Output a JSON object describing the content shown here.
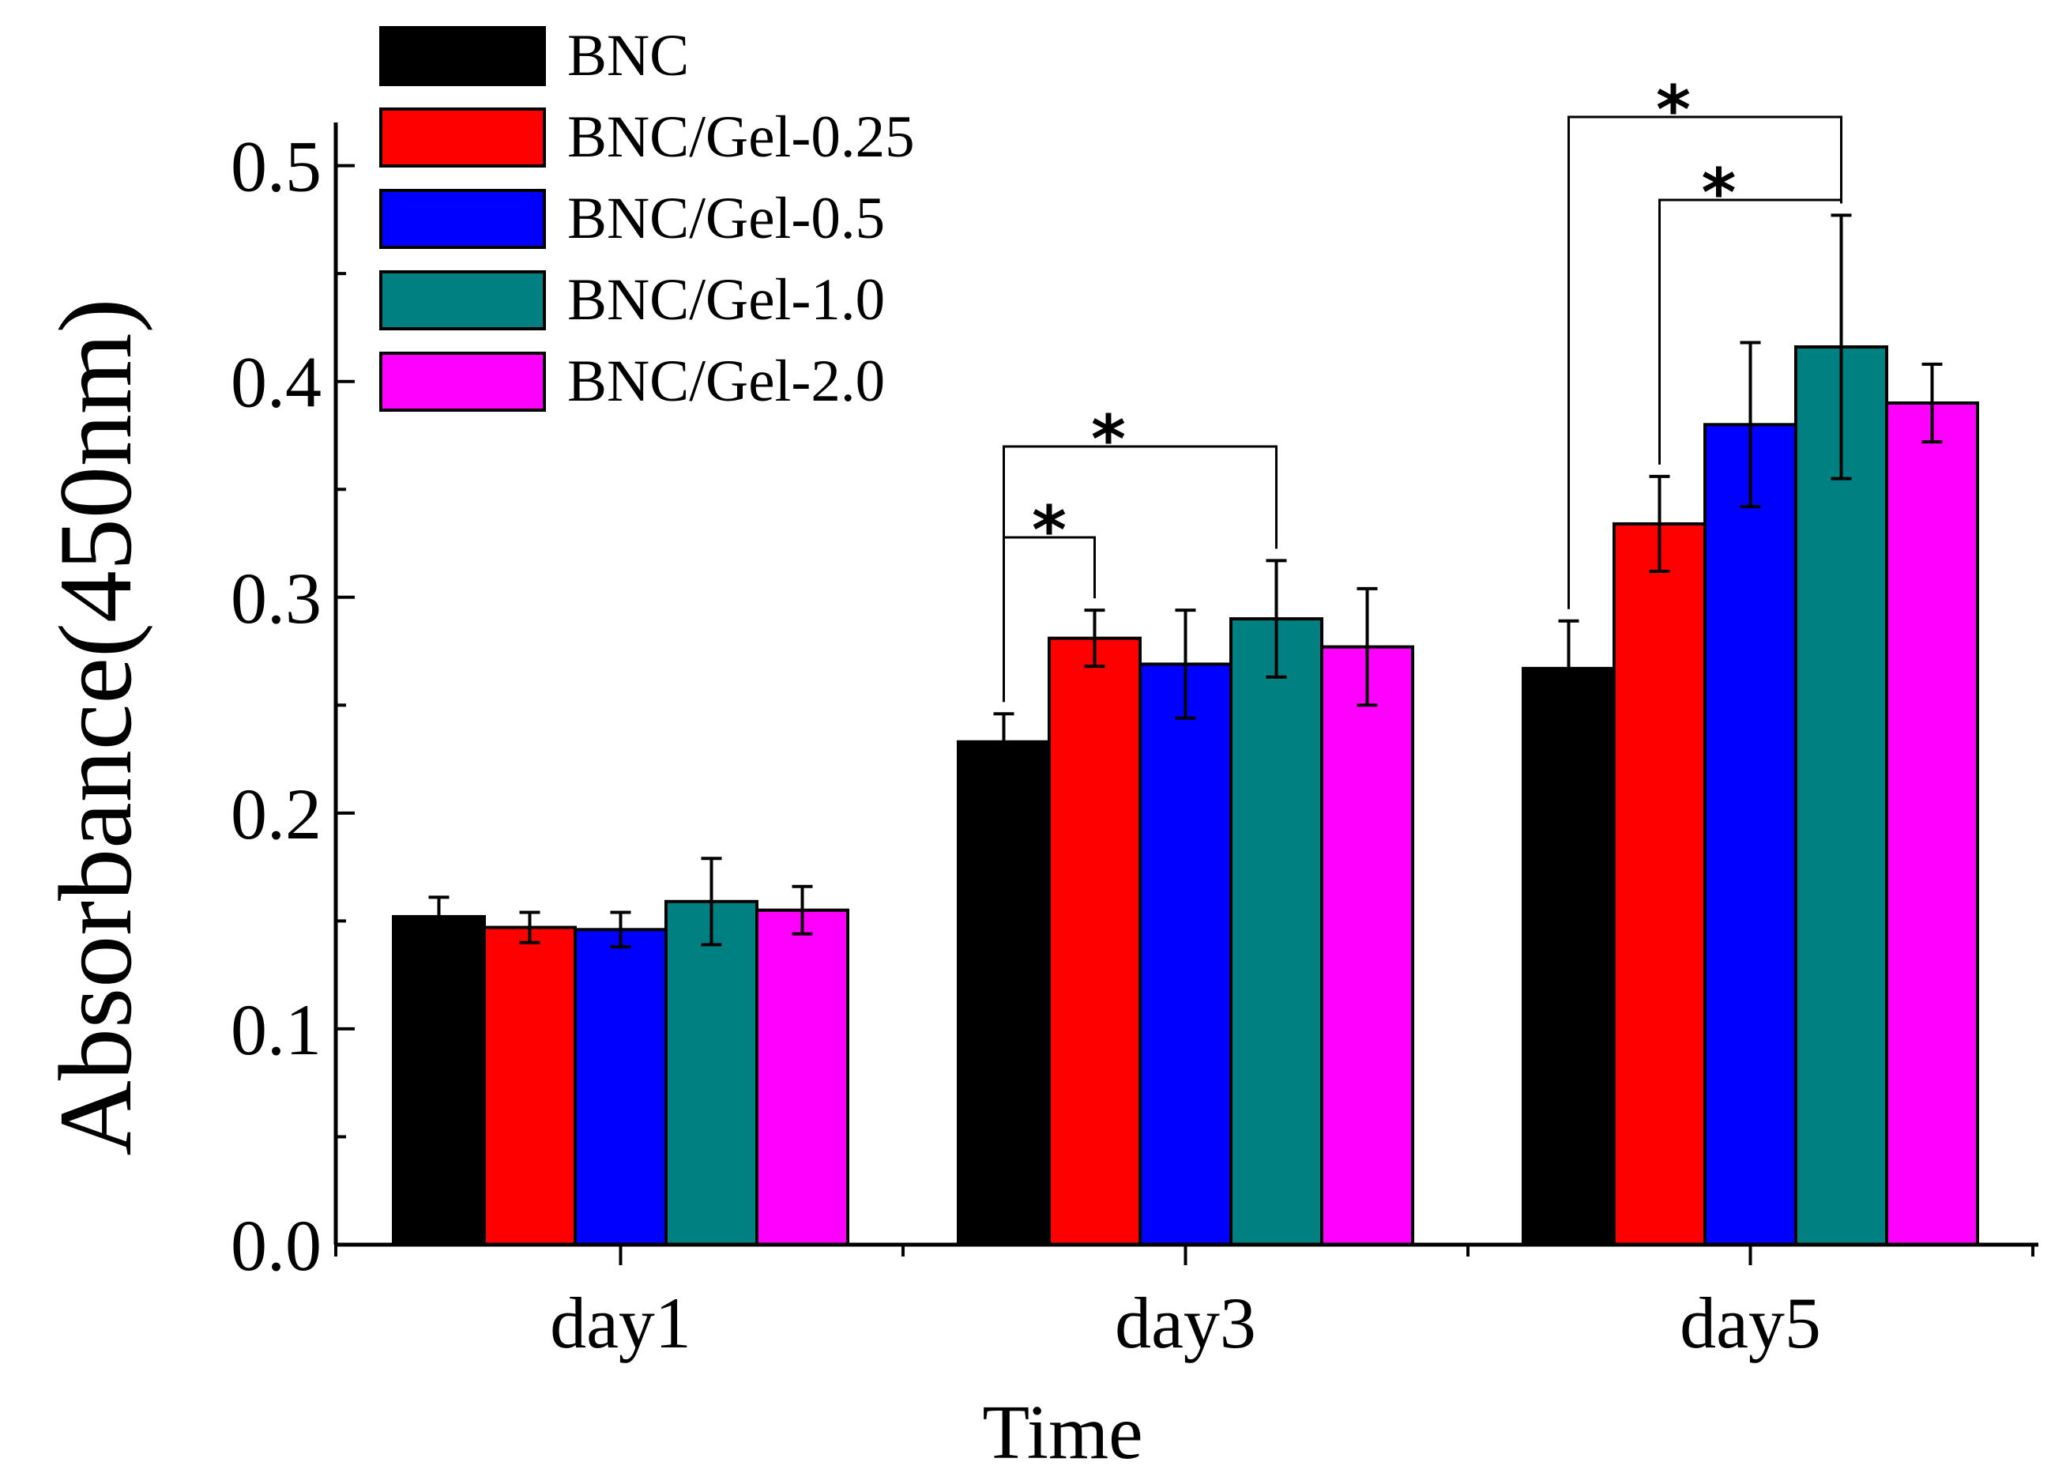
{
  "chart_data": {
    "type": "bar",
    "title": "",
    "xlabel": "Time",
    "ylabel": "Absorbance(450nm)",
    "ylim": [
      0,
      0.52
    ],
    "yticks": [
      "0.0",
      "0.1",
      "0.2",
      "0.3",
      "0.4",
      "0.5"
    ],
    "categories": [
      "day1",
      "day3",
      "day5"
    ],
    "series": [
      {
        "name": "BNC",
        "color": "#000000",
        "values": [
          0.152,
          0.233,
          0.267
        ],
        "errors": [
          0.009,
          0.013,
          0.022
        ]
      },
      {
        "name": "BNC/Gel-0.25",
        "color": "#ff0000",
        "values": [
          0.147,
          0.281,
          0.334
        ],
        "errors": [
          0.007,
          0.013,
          0.022
        ]
      },
      {
        "name": "BNC/Gel-0.5",
        "color": "#0000ff",
        "values": [
          0.146,
          0.269,
          0.38
        ],
        "errors": [
          0.008,
          0.025,
          0.038
        ]
      },
      {
        "name": "BNC/Gel-1.0",
        "color": "#008080",
        "values": [
          0.159,
          0.29,
          0.416
        ],
        "errors": [
          0.02,
          0.027,
          0.061
        ]
      },
      {
        "name": "BNC/Gel-2.0",
        "color": "#ff00ff",
        "values": [
          0.155,
          0.277,
          0.39
        ],
        "errors": [
          0.011,
          0.027,
          0.018
        ]
      }
    ],
    "legend_position": "top-left",
    "significance": [
      {
        "category": "day3",
        "from_series": 0,
        "to_series": 1,
        "label": "*"
      },
      {
        "category": "day3",
        "from_series": 0,
        "to_series": 3,
        "label": "*"
      },
      {
        "category": "day5",
        "from_series": 0,
        "to_series": 3,
        "label": "*"
      },
      {
        "category": "day5",
        "from_series": 1,
        "to_series": 3,
        "label": "*"
      }
    ]
  }
}
